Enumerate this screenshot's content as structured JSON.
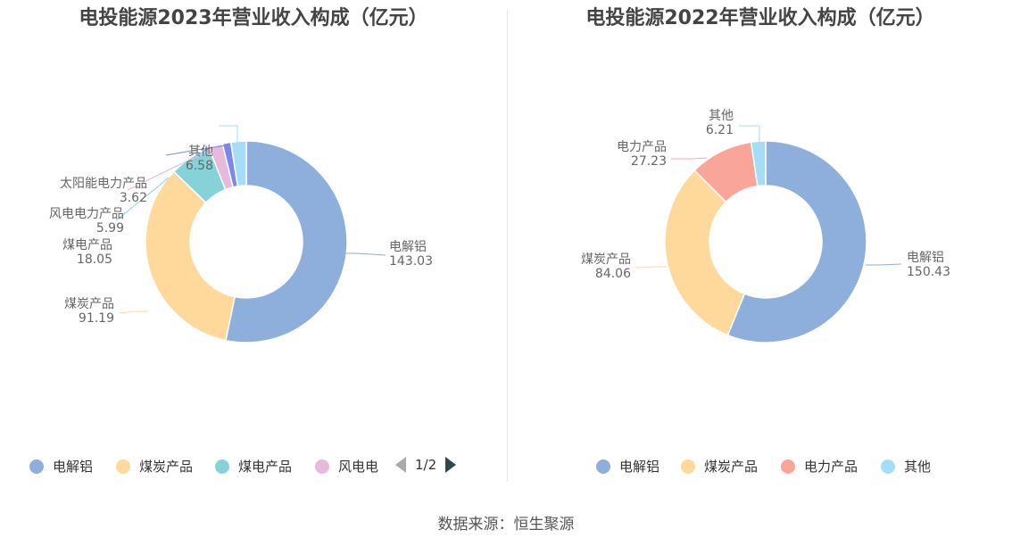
{
  "chart_data": [
    {
      "type": "pie",
      "title": "电投能源2023年营业收入构成（亿元）",
      "categories": [
        "电解铝",
        "煤炭产品",
        "煤电产品",
        "风电电力产品",
        "太阳能电力产品",
        "其他"
      ],
      "values": [
        143.03,
        91.19,
        18.05,
        5.99,
        3.62,
        6.58
      ],
      "value_labels": [
        "143.03",
        "91.19",
        "18.05",
        "5.99",
        "3.62",
        "6.58"
      ],
      "colors": [
        "#8eaedc",
        "#ffd99c",
        "#85d3d8",
        "#e6b9dd",
        "#7b86ee",
        "#a5dcf8"
      ],
      "legend": {
        "items": [
          "电解铝",
          "煤炭产品",
          "煤电产品",
          "风电电"
        ],
        "page": "1/2",
        "placement": "bottom"
      }
    },
    {
      "type": "pie",
      "title": "电投能源2022年营业收入构成（亿元）",
      "categories": [
        "电解铝",
        "煤炭产品",
        "电力产品",
        "其他"
      ],
      "values": [
        150.43,
        84.06,
        27.23,
        6.21
      ],
      "value_labels": [
        "150.43",
        "84.06",
        "27.23",
        "6.21"
      ],
      "colors": [
        "#8eaedc",
        "#ffd99c",
        "#f9a59a",
        "#a5dcf8"
      ],
      "legend": {
        "items": [
          "电解铝",
          "煤炭产品",
          "电力产品",
          "其他"
        ],
        "placement": "bottom"
      }
    }
  ],
  "source_text": "数据来源：恒生聚源"
}
